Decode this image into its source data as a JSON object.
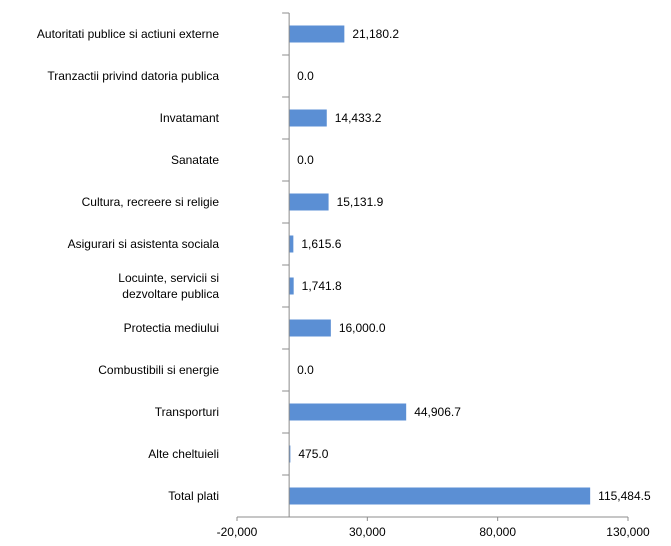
{
  "chart_data": {
    "type": "bar",
    "orientation": "horizontal",
    "title": "",
    "xlabel": "",
    "ylabel": "",
    "xlim": [
      -20000,
      130000
    ],
    "x_ticks": [
      -20000,
      30000,
      80000,
      130000
    ],
    "x_tick_labels": [
      "-20,000",
      "30,000",
      "80,000",
      "130,000"
    ],
    "grid": false,
    "legend": "none",
    "bar_color": "#5b8fd4",
    "categories": [
      [
        "Autoritati publice si actiuni externe"
      ],
      [
        "Tranzactii privind datoria publica"
      ],
      [
        "Invatamant"
      ],
      [
        "Sanatate"
      ],
      [
        "Cultura, recreere si religie"
      ],
      [
        "Asigurari si asistenta sociala"
      ],
      [
        "Locuinte, servicii si",
        "dezvoltare publica"
      ],
      [
        "Protectia mediului"
      ],
      [
        "Combustibili si energie"
      ],
      [
        "Transporturi"
      ],
      [
        "Alte cheltuieli"
      ],
      [
        "Total plati"
      ]
    ],
    "values": [
      21180.2,
      0.0,
      14433.2,
      0.0,
      15131.9,
      1615.6,
      1741.8,
      16000.0,
      0.0,
      44906.7,
      475.0,
      115484.5
    ],
    "value_labels": [
      "21,180.2",
      "0.0",
      "14,433.2",
      "0.0",
      "15,131.9",
      "1,615.6",
      "1,741.8",
      "16,000.0",
      "0.0",
      "44,906.7",
      "475.0",
      "115,484.5"
    ]
  }
}
